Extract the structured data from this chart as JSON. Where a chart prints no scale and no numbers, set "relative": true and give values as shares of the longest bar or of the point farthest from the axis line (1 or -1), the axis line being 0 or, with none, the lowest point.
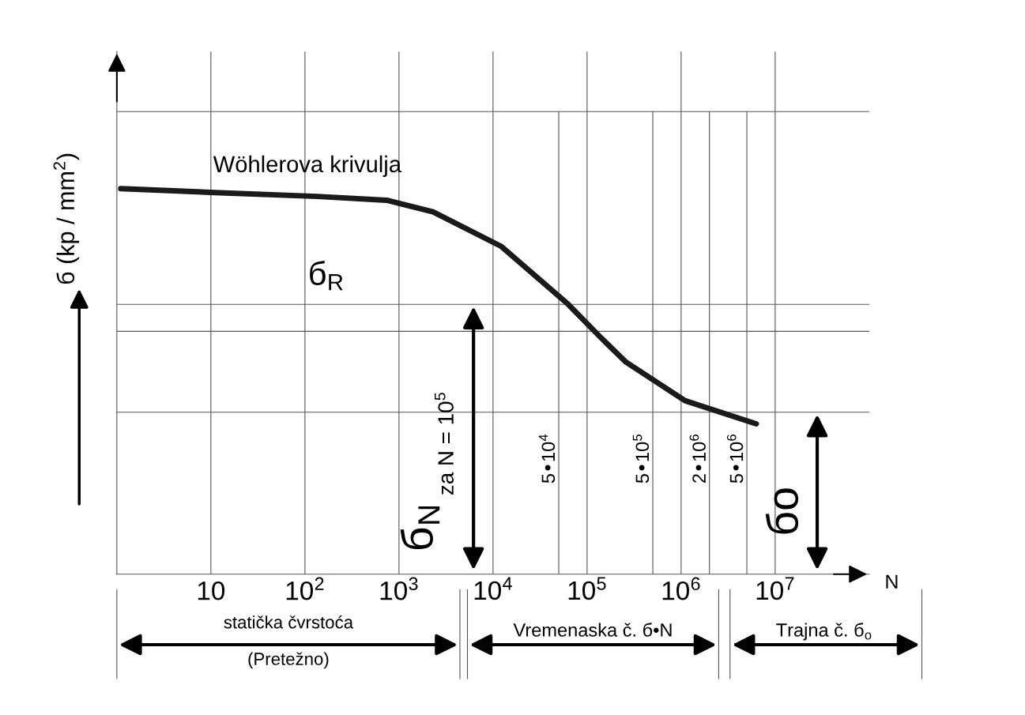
{
  "chart_data": {
    "type": "line",
    "relative": true,
    "log": "x",
    "ylabel": "б (kp / mm$^{2}$)",
    "xlabel": "N",
    "x": [
      1.1,
      11,
      135,
      740,
      2300,
      12300,
      63000,
      145000,
      260000,
      1100000,
      6300000
    ],
    "series": [
      {
        "color": "#1a1a1a",
        "values": [
          1.0,
          0.99,
          0.98,
          0.97,
          0.94,
          0.85,
          0.7,
          0.61,
          0.55,
          0.45,
          0.39
        ]
      }
    ],
    "xlim": [
      1,
      100000000
    ],
    "xticks": [
      {
        "value": 10,
        "label": "10"
      },
      {
        "value": 100,
        "label": "10$^{2}$"
      },
      {
        "value": 1000,
        "label": "10$^{3}$"
      },
      {
        "value": 10000,
        "label": "10$^{4}$"
      },
      {
        "value": 100000,
        "label": "10$^{5}$"
      },
      {
        "value": 1000000,
        "label": "10$^{6}$"
      },
      {
        "value": 10000000,
        "label": "10$^{7}$"
      }
    ],
    "grid": "x",
    "line_style": "solid",
    "marker": "none",
    "ref_lines": [
      {
        "axis": "x",
        "value": 50000,
        "label": "5•10$^{4}$",
        "color": "#555555"
      },
      {
        "axis": "x",
        "value": 500000,
        "label": "5•10$^{5}$",
        "color": "#555555"
      },
      {
        "axis": "x",
        "value": 2000000,
        "label": "2•10$^{6}$",
        "color": "#555555"
      },
      {
        "axis": "x",
        "value": 5000000,
        "label": "5•10$^{6}$",
        "color": "#555555"
      },
      {
        "axis": "y",
        "value": 1.2,
        "color": "#555555"
      },
      {
        "axis": "y",
        "value": 0.7,
        "color": "#555555"
      },
      {
        "axis": "y",
        "value": 0.63,
        "color": "#555555"
      },
      {
        "axis": "y",
        "value": 0.42,
        "color": "#555555"
      }
    ],
    "annotations": [
      "Wöhlerova krivulja",
      "б$_{R}$",
      "za N = 10$^{5}$",
      "б$_{N}$",
      "бo",
      "statička čvrstoća",
      "(Pretežno)",
      "Vremenaska č. б•N",
      "Trajna č. б$_{o}$"
    ]
  }
}
